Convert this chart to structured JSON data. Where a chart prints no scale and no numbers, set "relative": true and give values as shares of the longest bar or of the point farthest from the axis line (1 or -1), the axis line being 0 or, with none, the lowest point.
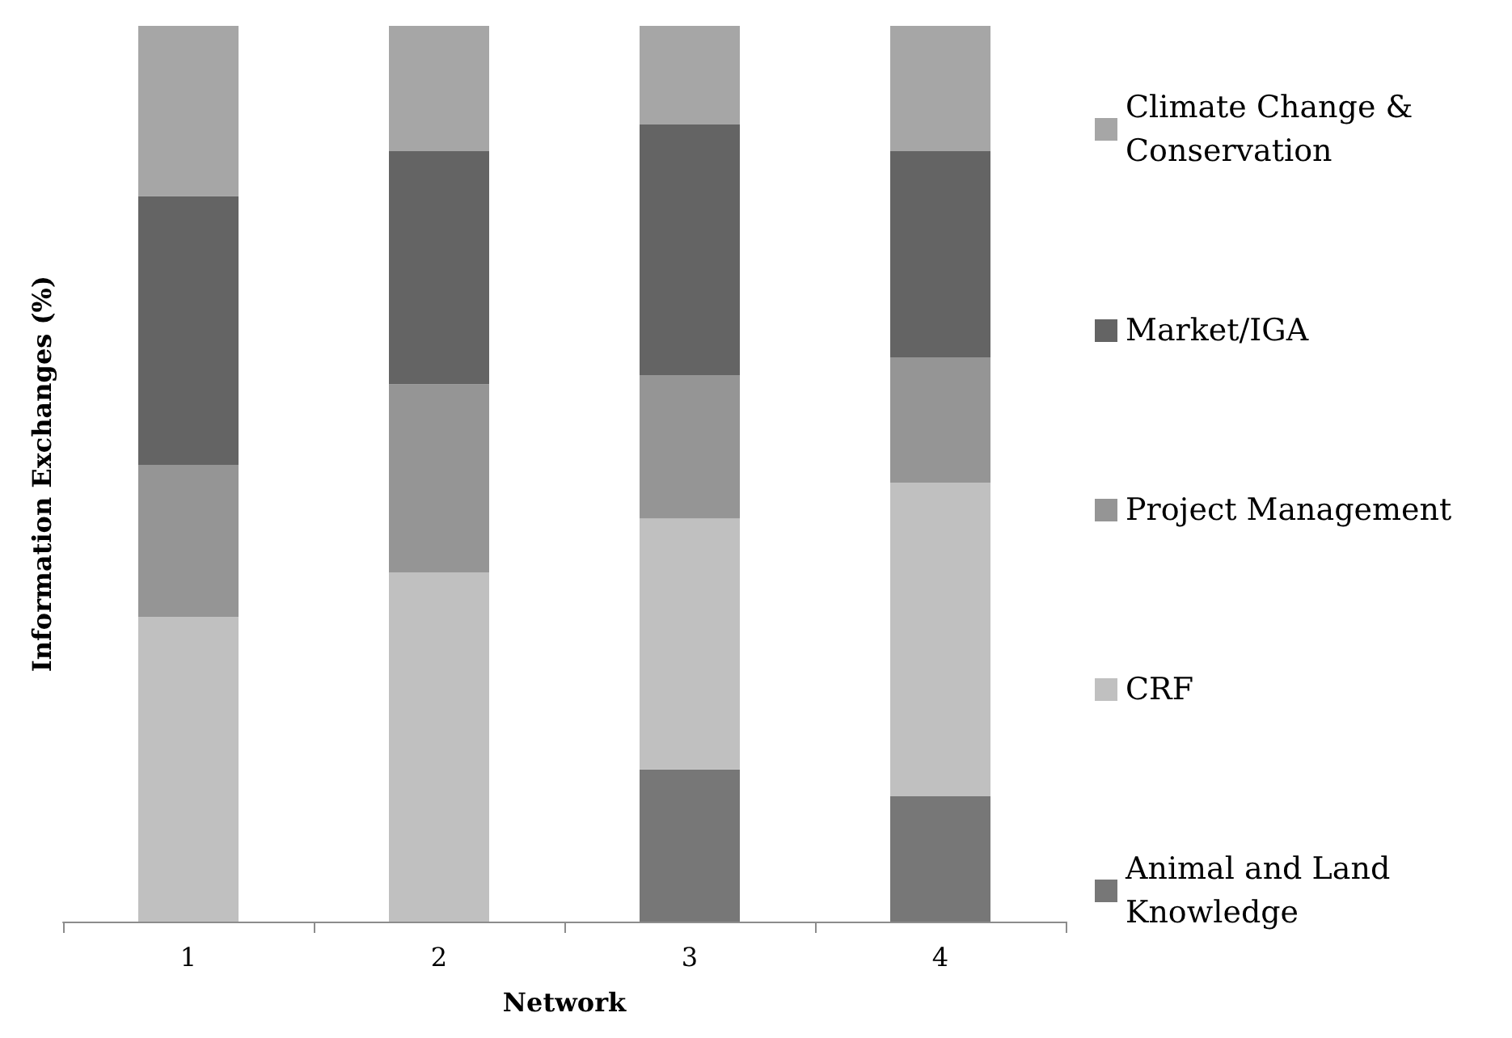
{
  "chart_data": {
    "type": "bar",
    "xlabel": "Network",
    "ylabel": "Information Exchanges (%)",
    "categories": [
      "1",
      "2",
      "3",
      "4"
    ],
    "stacked": true,
    "relative": true,
    "legend": "right",
    "series": [
      {
        "name": "Animal and Land Knowledge",
        "color": "#777777",
        "values": [
          null,
          null,
          0.17,
          0.14
        ]
      },
      {
        "name": "CRF",
        "color": "#c0c0c0",
        "values": [
          0.34,
          0.39,
          0.28,
          0.35
        ]
      },
      {
        "name": "Project Management",
        "color": "#959595",
        "values": [
          0.17,
          0.21,
          0.16,
          0.14
        ]
      },
      {
        "name": "Market/IGA",
        "color": "#646464",
        "values": [
          0.3,
          0.26,
          0.28,
          0.23
        ]
      },
      {
        "name": "Climate Change & Conservation",
        "color": "#a6a6a6",
        "values": [
          0.19,
          0.14,
          0.11,
          0.14
        ]
      }
    ]
  }
}
